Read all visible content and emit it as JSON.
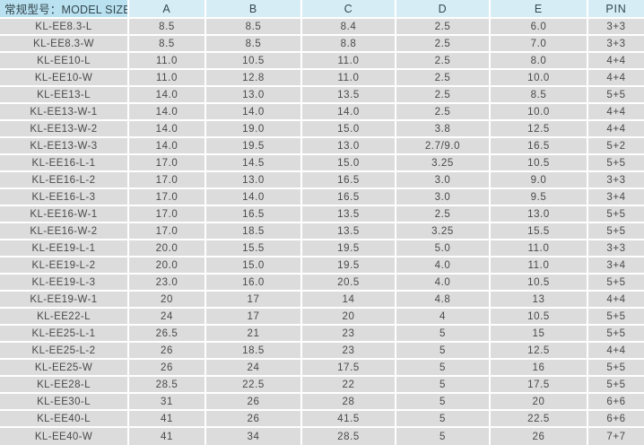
{
  "table": {
    "header": {
      "model": "常规型号：MODEL SIZE",
      "cols": [
        "A",
        "B",
        "C",
        "D",
        "E",
        "PIN"
      ]
    },
    "rows": [
      {
        "model": "KL-EE8.3-L",
        "values": [
          "8.5",
          "8.5",
          "8.4",
          "2.5",
          "6.0",
          "3+3"
        ]
      },
      {
        "model": "KL-EE8.3-W",
        "values": [
          "8.5",
          "8.5",
          "8.8",
          "2.5",
          "7.0",
          "3+3"
        ]
      },
      {
        "model": "KL-EE10-L",
        "values": [
          "11.0",
          "10.5",
          "11.0",
          "2.5",
          "8.0",
          "4+4"
        ]
      },
      {
        "model": "KL-EE10-W",
        "values": [
          "11.0",
          "12.8",
          "11.0",
          "2.5",
          "10.0",
          "4+4"
        ]
      },
      {
        "model": "KL-EE13-L",
        "values": [
          "14.0",
          "13.0",
          "13.5",
          "2.5",
          "8.5",
          "5+5"
        ]
      },
      {
        "model": "KL-EE13-W-1",
        "values": [
          "14.0",
          "14.0",
          "14.0",
          "2.5",
          "10.0",
          "4+4"
        ]
      },
      {
        "model": "KL-EE13-W-2",
        "values": [
          "14.0",
          "19.0",
          "15.0",
          "3.8",
          "12.5",
          "4+4"
        ]
      },
      {
        "model": "KL-EE13-W-3",
        "values": [
          "14.0",
          "19.5",
          "13.0",
          "2.7/9.0",
          "16.5",
          "5+2"
        ]
      },
      {
        "model": "KL-EE16-L-1",
        "values": [
          "17.0",
          "14.5",
          "15.0",
          "3.25",
          "10.5",
          "5+5"
        ]
      },
      {
        "model": "KL-EE16-L-2",
        "values": [
          "17.0",
          "13.0",
          "16.5",
          "3.0",
          "9.0",
          "3+3"
        ]
      },
      {
        "model": "KL-EE16-L-3",
        "values": [
          "17.0",
          "14.0",
          "16.5",
          "3.0",
          "9.5",
          "3+4"
        ]
      },
      {
        "model": "KL-EE16-W-1",
        "values": [
          "17.0",
          "16.5",
          "13.5",
          "2.5",
          "13.0",
          "5+5"
        ]
      },
      {
        "model": "KL-EE16-W-2",
        "values": [
          "17.0",
          "18.5",
          "13.5",
          "3.25",
          "15.5",
          "5+5"
        ]
      },
      {
        "model": "KL-EE19-L-1",
        "values": [
          "20.0",
          "15.5",
          "19.5",
          "5.0",
          "11.0",
          "3+3"
        ]
      },
      {
        "model": "KL-EE19-L-2",
        "values": [
          "20.0",
          "15.0",
          "19.5",
          "4.0",
          "11.0",
          "3+4"
        ]
      },
      {
        "model": "KL-EE19-L-3",
        "values": [
          "23.0",
          "16.0",
          "20.5",
          "4.0",
          "10.5",
          "5+5"
        ]
      },
      {
        "model": "KL-EE19-W-1",
        "values": [
          "20",
          "17",
          "14",
          "4.8",
          "13",
          "4+4"
        ]
      },
      {
        "model": "KL-EE22-L",
        "values": [
          "24",
          "17",
          "20",
          "4",
          "10.5",
          "5+5"
        ]
      },
      {
        "model": "KL-EE25-L-1",
        "values": [
          "26.5",
          "21",
          "23",
          "5",
          "15",
          "5+5"
        ]
      },
      {
        "model": "KL-EE25-L-2",
        "values": [
          "26",
          "18.5",
          "23",
          "5",
          "12.5",
          "4+4"
        ]
      },
      {
        "model": "KL-EE25-W",
        "values": [
          "26",
          "24",
          "17.5",
          "5",
          "16",
          "5+5"
        ]
      },
      {
        "model": "KL-EE28-L",
        "values": [
          "28.5",
          "22.5",
          "22",
          "5",
          "17.5",
          "5+5"
        ]
      },
      {
        "model": "KL-EE30-L",
        "values": [
          "31",
          "26",
          "28",
          "5",
          "20",
          "6+6"
        ]
      },
      {
        "model": "KL-EE40-L",
        "values": [
          "41",
          "26",
          "41.5",
          "5",
          "22.5",
          "6+6"
        ]
      },
      {
        "model": "KL-EE40-W",
        "values": [
          "41",
          "34",
          "28.5",
          "5",
          "26",
          "7+7"
        ]
      }
    ]
  },
  "colors": {
    "header_model_bg": "#b9e1ef",
    "header_bg": "#d7edf6",
    "row_bg": "#dcdcdc",
    "separator": "#ffffff",
    "header_text": "#35474f",
    "cell_text": "#4a4a4a"
  }
}
